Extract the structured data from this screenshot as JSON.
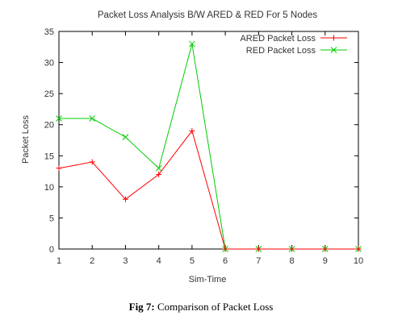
{
  "chart_data": {
    "type": "line",
    "title": "Packet Loss Analysis B/W ARED & RED For 5 Nodes",
    "xlabel": "Sim-Time",
    "ylabel": "Packet Loss",
    "x": [
      1,
      2,
      3,
      4,
      5,
      6,
      7,
      8,
      9,
      10
    ],
    "xlim": [
      1,
      10
    ],
    "ylim": [
      0,
      35
    ],
    "xticks": [
      "1",
      "2",
      "3",
      "4",
      "5",
      "6",
      "7",
      "8",
      "9",
      "10"
    ],
    "yticks": [
      "0",
      "5",
      "10",
      "15",
      "20",
      "25",
      "30",
      "35"
    ],
    "grid": false,
    "legend_position": "top-right",
    "series": [
      {
        "name": "ARED Packet Loss",
        "values": [
          13,
          14,
          8,
          12,
          19,
          0,
          0,
          0,
          0,
          0
        ],
        "color": "#ff0000",
        "marker": "plus"
      },
      {
        "name": "RED Packet Loss",
        "values": [
          21,
          21,
          18,
          13,
          33,
          0,
          0,
          0,
          0,
          0
        ],
        "color": "#00cc00",
        "marker": "cross"
      }
    ]
  },
  "caption": {
    "label": "Fig 7:",
    "text": " Comparison of Packet Loss"
  }
}
